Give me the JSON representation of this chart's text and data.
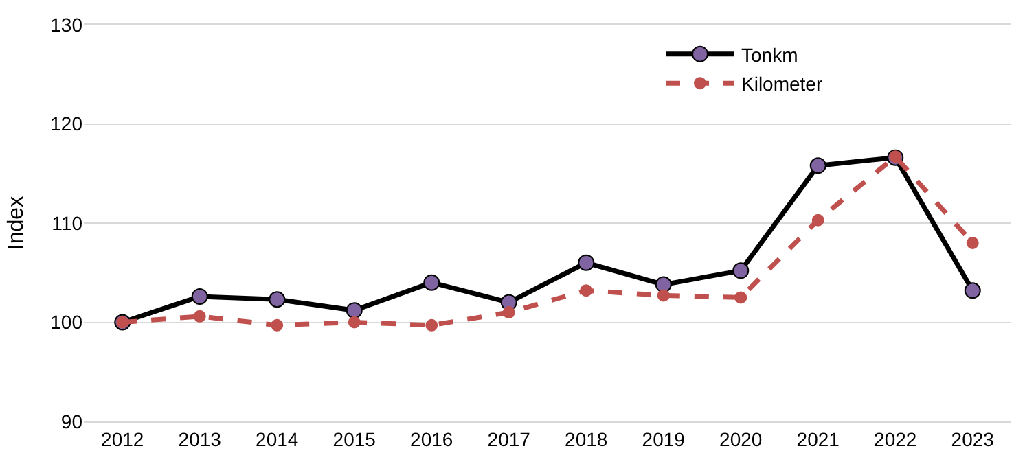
{
  "chart_data": {
    "type": "line",
    "ylabel": "Index",
    "categories": [
      "2012",
      "2013",
      "2014",
      "2015",
      "2016",
      "2017",
      "2018",
      "2019",
      "2020",
      "2021",
      "2022",
      "2023"
    ],
    "series": [
      {
        "name": "Tonkm",
        "color": "#000000",
        "colors": [
          "#8064a2",
          "#8064a2",
          "#8064a2",
          "#8064a2",
          "#8064a2",
          "#8064a2",
          "#8064a2",
          "#8064a2",
          "#8064a2",
          "#8064a2",
          "#8064a2",
          "#8064a2"
        ],
        "line_style": "solid",
        "values": [
          100,
          102.6,
          102.3,
          101.2,
          104.0,
          102.0,
          106.0,
          103.8,
          105.2,
          115.8,
          116.6,
          103.2
        ]
      },
      {
        "name": "Kilometer",
        "color": "#c0504d",
        "line_style": "dashed",
        "values": [
          100,
          100.6,
          99.7,
          100.0,
          99.7,
          101.0,
          103.2,
          102.7,
          102.5,
          110.3,
          116.7,
          108.0
        ]
      }
    ],
    "ylim": [
      90,
      130
    ],
    "yticks": [
      90,
      100,
      110,
      120,
      130
    ],
    "grid": "y",
    "legend": "top",
    "marker": "circle"
  }
}
